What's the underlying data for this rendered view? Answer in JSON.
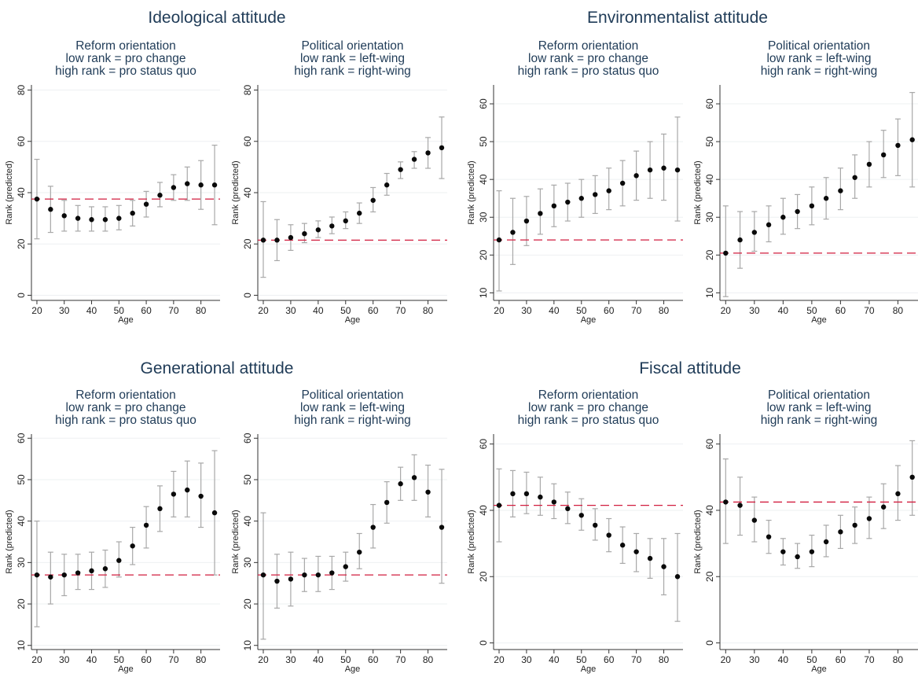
{
  "groups": [
    {
      "title": "Ideological attitude"
    },
    {
      "title": "Environmentalist attitude"
    },
    {
      "title": "Generational attitude"
    },
    {
      "title": "Fiscal attitude"
    }
  ],
  "chart_data": [
    {
      "type": "scatter",
      "group": "Ideological attitude",
      "title_lines": [
        "Reform orientation",
        "low rank = pro change",
        "high rank = pro status quo"
      ],
      "xlabel": "Age",
      "ylabel": "Rank (predicted)",
      "xticks": [
        20,
        30,
        40,
        50,
        60,
        70,
        80
      ],
      "yticks": [
        0,
        20,
        40,
        60,
        80
      ],
      "xlim": [
        18,
        87
      ],
      "ylim": [
        -2,
        82
      ],
      "x": [
        20,
        25,
        30,
        35,
        40,
        45,
        50,
        55,
        60,
        65,
        70,
        75,
        80,
        85
      ],
      "y": [
        37.5,
        33.5,
        31,
        30,
        29.5,
        29.5,
        30,
        32,
        35.5,
        39,
        42,
        43.5,
        43,
        43
      ],
      "lower": [
        22,
        24.5,
        25,
        25,
        25,
        25,
        25.5,
        27,
        30.5,
        34.5,
        37,
        37,
        33.5,
        27.5
      ],
      "upper": [
        53,
        42.5,
        37,
        35,
        34.5,
        34.5,
        35,
        37,
        40.5,
        44,
        47,
        50,
        52.5,
        58.5
      ],
      "reference_line": 37.5
    },
    {
      "type": "scatter",
      "group": "Ideological attitude",
      "title_lines": [
        "Political orientation",
        "low rank = left-wing",
        "high rank = right-wing"
      ],
      "xlabel": "Age",
      "ylabel": "Rank (predicted)",
      "xticks": [
        20,
        30,
        40,
        50,
        60,
        70,
        80
      ],
      "yticks": [
        0,
        20,
        40,
        60,
        80
      ],
      "xlim": [
        18,
        87
      ],
      "ylim": [
        -2,
        82
      ],
      "x": [
        20,
        25,
        30,
        35,
        40,
        45,
        50,
        55,
        60,
        65,
        70,
        75,
        80,
        85
      ],
      "y": [
        21.5,
        21.5,
        22.5,
        24,
        25.5,
        27,
        29,
        32,
        37,
        43,
        49,
        53,
        55.5,
        57.5
      ],
      "lower": [
        7,
        13.5,
        17.5,
        20.5,
        22.5,
        24,
        26,
        28,
        32.5,
        39,
        45.5,
        49.5,
        49.5,
        45.5
      ],
      "upper": [
        36.5,
        29.5,
        27.5,
        28,
        29,
        30.5,
        32.5,
        36,
        42,
        47.5,
        52,
        56,
        61.5,
        69.5
      ],
      "reference_line": 21.5
    },
    {
      "type": "scatter",
      "group": "Environmentalist attitude",
      "title_lines": [
        "Reform orientation",
        "low rank = pro change",
        "high rank = pro status quo"
      ],
      "xlabel": "Age",
      "ylabel": "Rank (predicted)",
      "xticks": [
        20,
        30,
        40,
        50,
        60,
        70,
        80
      ],
      "yticks": [
        10,
        20,
        30,
        40,
        50,
        60
      ],
      "xlim": [
        18,
        87
      ],
      "ylim": [
        8,
        65
      ],
      "x": [
        20,
        25,
        30,
        35,
        40,
        45,
        50,
        55,
        60,
        65,
        70,
        75,
        80,
        85
      ],
      "y": [
        24,
        26,
        29,
        31,
        33,
        34,
        35,
        36,
        37,
        39,
        41,
        42.5,
        43,
        42.5
      ],
      "lower": [
        10.5,
        17.5,
        22.5,
        25.5,
        27.5,
        29,
        30,
        31,
        32,
        33,
        34.5,
        35,
        34.5,
        29
      ],
      "upper": [
        37,
        35,
        35.5,
        37.5,
        38.5,
        39,
        40,
        41,
        43,
        45,
        47.5,
        50,
        52,
        56.5
      ],
      "reference_line": 24
    },
    {
      "type": "scatter",
      "group": "Environmentalist attitude",
      "title_lines": [
        "Political orientation",
        "low rank = left-wing",
        "high rank = right-wing"
      ],
      "xlabel": "Age",
      "ylabel": "Rank (predicted)",
      "xticks": [
        20,
        30,
        40,
        50,
        60,
        70,
        80
      ],
      "yticks": [
        10,
        20,
        30,
        40,
        50,
        60
      ],
      "xlim": [
        18,
        87
      ],
      "ylim": [
        8,
        65
      ],
      "x": [
        20,
        25,
        30,
        35,
        40,
        45,
        50,
        55,
        60,
        65,
        70,
        75,
        80,
        85
      ],
      "y": [
        20.5,
        24,
        26,
        28,
        30,
        31.5,
        33,
        35,
        37,
        40.5,
        44,
        46.5,
        49,
        50.5
      ],
      "lower": [
        9,
        16.5,
        21,
        23.5,
        25.5,
        27,
        28,
        29.5,
        32,
        35,
        38,
        40.5,
        41,
        38
      ],
      "upper": [
        33,
        31.5,
        31.5,
        33,
        35,
        36,
        38,
        40.5,
        43,
        46.5,
        50,
        53,
        56,
        63
      ],
      "reference_line": 20.5
    },
    {
      "type": "scatter",
      "group": "Generational attitude",
      "title_lines": [
        "Reform orientation",
        "low rank = pro change",
        "high rank = pro status quo"
      ],
      "xlabel": "Age",
      "ylabel": "Rank (predicted)",
      "xticks": [
        20,
        30,
        40,
        50,
        60,
        70,
        80
      ],
      "yticks": [
        10,
        20,
        30,
        40,
        50,
        60
      ],
      "xlim": [
        18,
        87
      ],
      "ylim": [
        9,
        61
      ],
      "x": [
        20,
        25,
        30,
        35,
        40,
        45,
        50,
        55,
        60,
        65,
        70,
        75,
        80,
        85
      ],
      "y": [
        27,
        26.5,
        27,
        27.5,
        28,
        28.5,
        30.5,
        34,
        39,
        43,
        46.5,
        47.5,
        46,
        42
      ],
      "lower": [
        14.5,
        20,
        22,
        23.5,
        23.5,
        24,
        26.5,
        29.5,
        33.5,
        37.5,
        41,
        41,
        38.5,
        27
      ],
      "upper": [
        40,
        32.5,
        32,
        32,
        32.5,
        33,
        35,
        38.5,
        43.5,
        48.5,
        52,
        54.5,
        54,
        57
      ],
      "reference_line": 27
    },
    {
      "type": "scatter",
      "group": "Generational attitude",
      "title_lines": [
        "Political orientation",
        "low rank = left-wing",
        "high rank = right-wing"
      ],
      "xlabel": "Age",
      "ylabel": "Rank (predicted)",
      "xticks": [
        20,
        30,
        40,
        50,
        60,
        70,
        80
      ],
      "yticks": [
        10,
        20,
        30,
        40,
        50,
        60
      ],
      "xlim": [
        18,
        87
      ],
      "ylim": [
        9,
        61
      ],
      "x": [
        20,
        25,
        30,
        35,
        40,
        45,
        50,
        55,
        60,
        65,
        70,
        75,
        80,
        85
      ],
      "y": [
        27,
        25.5,
        26,
        27,
        27,
        27.5,
        29,
        32.5,
        38.5,
        44.5,
        49,
        50.5,
        47,
        38.5
      ],
      "lower": [
        11.5,
        19,
        19.5,
        23,
        23,
        23.5,
        25.5,
        28.5,
        33.5,
        39.5,
        45,
        45,
        41,
        25
      ],
      "upper": [
        42,
        32,
        32.5,
        31,
        31.5,
        31.5,
        32.5,
        37,
        44,
        49.5,
        53,
        56,
        53.5,
        52.5
      ],
      "reference_line": 27
    },
    {
      "type": "scatter",
      "group": "Fiscal attitude",
      "title_lines": [
        "Reform orientation",
        "low rank = pro change",
        "high rank = pro status quo"
      ],
      "xlabel": "Age",
      "ylabel": "Rank (predicted)",
      "xticks": [
        20,
        30,
        40,
        50,
        60,
        70,
        80
      ],
      "yticks": [
        0,
        20,
        40,
        60
      ],
      "xlim": [
        18,
        87
      ],
      "ylim": [
        -2,
        63
      ],
      "x": [
        20,
        25,
        30,
        35,
        40,
        45,
        50,
        55,
        60,
        65,
        70,
        75,
        80,
        85
      ],
      "y": [
        41.5,
        45,
        45,
        44,
        42.5,
        40.5,
        38.5,
        35.5,
        32.5,
        29.5,
        27.5,
        25.5,
        23,
        20
      ],
      "lower": [
        30.5,
        38,
        39,
        38.5,
        37.5,
        36,
        34,
        31,
        27.5,
        24,
        21.5,
        19.5,
        14.5,
        6.5
      ],
      "upper": [
        52.5,
        52,
        51.5,
        50,
        48,
        45.5,
        43.5,
        40.5,
        37.5,
        35,
        33,
        31.5,
        31.5,
        33
      ],
      "reference_line": 41.5
    },
    {
      "type": "scatter",
      "group": "Fiscal attitude",
      "title_lines": [
        "Political orientation",
        "low rank = left-wing",
        "high rank = right-wing"
      ],
      "xlabel": "Age",
      "ylabel": "Rank (predicted)",
      "xticks": [
        20,
        30,
        40,
        50,
        60,
        70,
        80
      ],
      "yticks": [
        0,
        20,
        40,
        60
      ],
      "xlim": [
        18,
        87
      ],
      "ylim": [
        -2,
        63
      ],
      "x": [
        20,
        25,
        30,
        35,
        40,
        45,
        50,
        55,
        60,
        65,
        70,
        75,
        80,
        85
      ],
      "y": [
        42.5,
        41.5,
        37,
        32,
        27.5,
        26,
        27.5,
        30.5,
        33.5,
        35.5,
        37.5,
        41,
        45,
        50
      ],
      "lower": [
        30,
        32.5,
        30.5,
        27,
        23.5,
        22.5,
        23,
        26,
        28.5,
        30,
        31.5,
        34.5,
        37,
        38.5
      ],
      "upper": [
        55.5,
        50,
        44,
        37,
        31.5,
        30,
        32.5,
        35.5,
        38.5,
        41,
        44,
        48,
        53.5,
        61
      ],
      "reference_line": 42.5
    }
  ]
}
